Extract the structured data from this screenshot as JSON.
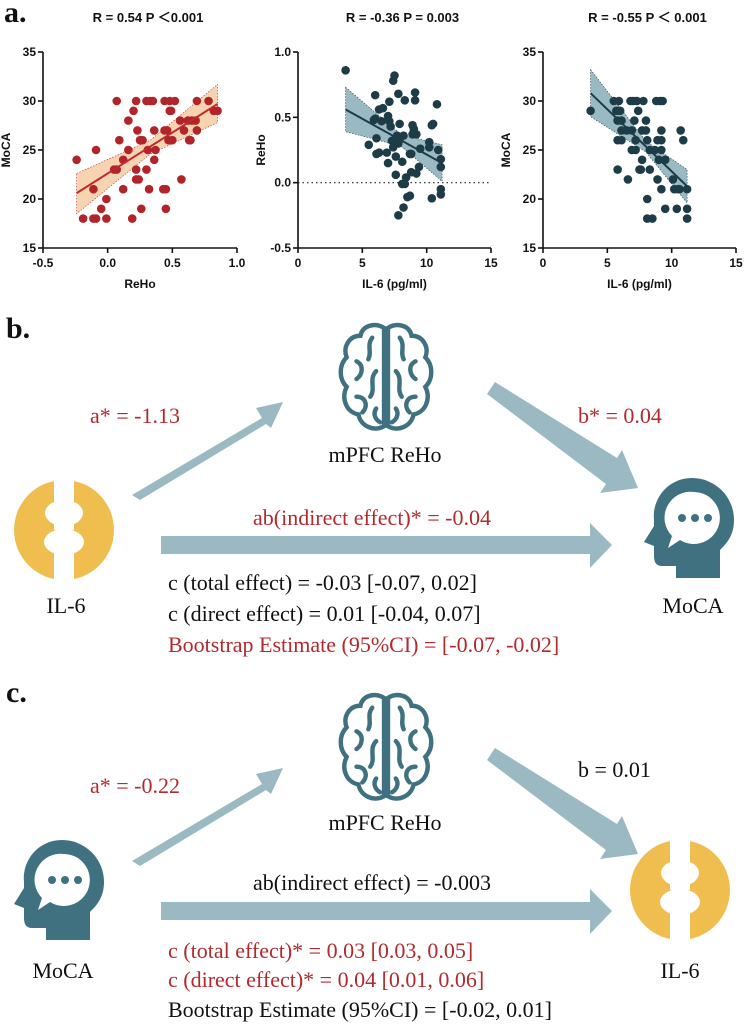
{
  "colors": {
    "red_points": "#b0242a",
    "red_band": "#f6cfa8",
    "dark_points": "#1d3c47",
    "teal_band": "#8fb3bd",
    "arrow": "#9ab9c2",
    "icon_teal": "#3f7181",
    "icon_yellow": "#f0bd4f",
    "red_text": "#b22a2e"
  },
  "panel_a": {
    "letter": "a."
  },
  "chart_data": [
    {
      "type": "scatter",
      "title": "R = 0.54 P ＜0.001",
      "xlabel": "ReHo",
      "ylabel": "MoCA",
      "xlim": [
        -0.5,
        1.0
      ],
      "ylim": [
        15,
        35
      ],
      "xticks": [
        "-0.5",
        "0.0",
        "0.5",
        "1.0"
      ],
      "xtick_values": [
        -0.5,
        0,
        0.5,
        1.0
      ],
      "yticks": [
        "15",
        "20",
        "25",
        "30",
        "35"
      ],
      "ytick_values": [
        15,
        20,
        25,
        30,
        35
      ],
      "point_color": "#b0242a",
      "band_color": "#f6cfa8",
      "line_color": "#c0282d",
      "zero_line": false,
      "fit": {
        "x": [
          -0.24,
          0.85
        ],
        "y": [
          20.6,
          29.7
        ]
      },
      "ci_band": [
        [
          -0.24,
          18.5,
          22.6
        ],
        [
          0.33,
          24.6,
          26.0
        ],
        [
          0.85,
          27.8,
          31.7
        ]
      ],
      "points": [
        [
          -0.24,
          24
        ],
        [
          -0.19,
          18
        ],
        [
          -0.11,
          21
        ],
        [
          -0.11,
          18
        ],
        [
          -0.09,
          18
        ],
        [
          -0.09,
          25
        ],
        [
          -0.05,
          19
        ],
        [
          -0.01,
          20
        ],
        [
          -0.01,
          18
        ],
        [
          0.05,
          23
        ],
        [
          0.07,
          30
        ],
        [
          0.07,
          23
        ],
        [
          0.09,
          26
        ],
        [
          0.12,
          24
        ],
        [
          0.12,
          21
        ],
        [
          0.16,
          25
        ],
        [
          0.16,
          28
        ],
        [
          0.19,
          18
        ],
        [
          0.2,
          29
        ],
        [
          0.22,
          30
        ],
        [
          0.22,
          23
        ],
        [
          0.22,
          22
        ],
        [
          0.23,
          27
        ],
        [
          0.24,
          22
        ],
        [
          0.25,
          26
        ],
        [
          0.26,
          19
        ],
        [
          0.27,
          26
        ],
        [
          0.3,
          30
        ],
        [
          0.3,
          23
        ],
        [
          0.31,
          25
        ],
        [
          0.32,
          21
        ],
        [
          0.33,
          30
        ],
        [
          0.35,
          30
        ],
        [
          0.36,
          27
        ],
        [
          0.36,
          24
        ],
        [
          0.37,
          25
        ],
        [
          0.43,
          21
        ],
        [
          0.44,
          27
        ],
        [
          0.44,
          30
        ],
        [
          0.45,
          19
        ],
        [
          0.45,
          21
        ],
        [
          0.46,
          27
        ],
        [
          0.47,
          26
        ],
        [
          0.48,
          29
        ],
        [
          0.48,
          30
        ],
        [
          0.49,
          29
        ],
        [
          0.5,
          26
        ],
        [
          0.52,
          30
        ],
        [
          0.56,
          28
        ],
        [
          0.57,
          22
        ],
        [
          0.59,
          27
        ],
        [
          0.62,
          28
        ],
        [
          0.63,
          26
        ],
        [
          0.64,
          26
        ],
        [
          0.65,
          28
        ],
        [
          0.68,
          28
        ],
        [
          0.69,
          30
        ],
        [
          0.69,
          27
        ],
        [
          0.78,
          30
        ],
        [
          0.82,
          29
        ],
        [
          0.85,
          29
        ]
      ]
    },
    {
      "type": "scatter",
      "title": "R = -0.36 P = 0.003",
      "xlabel": "IL-6 (pg/ml)",
      "ylabel": "ReHo",
      "xlim": [
        0,
        15
      ],
      "ylim": [
        -0.5,
        1.0
      ],
      "xticks": [
        "0",
        "5",
        "10",
        "15"
      ],
      "xtick_values": [
        0,
        5,
        10,
        15
      ],
      "yticks": [
        "-0.5",
        "0.0",
        "0.5",
        "1.0"
      ],
      "ytick_values": [
        -0.5,
        0,
        0.5,
        1.0
      ],
      "point_color": "#1d3c47",
      "band_color": "#8fb3bd",
      "line_color": "#1d3c47",
      "zero_line": true,
      "fit": {
        "x": [
          3.7,
          11.2
        ],
        "y": [
          0.56,
          0.15
        ]
      },
      "ci_band": [
        [
          3.7,
          0.39,
          0.73
        ],
        [
          8.0,
          0.28,
          0.37
        ],
        [
          11.2,
          0.01,
          0.29
        ]
      ],
      "points": [
        [
          3.7,
          0.86
        ],
        [
          6,
          0.67
        ],
        [
          6,
          0.49
        ],
        [
          5.9,
          0.48
        ],
        [
          6.1,
          0.34
        ],
        [
          6.1,
          0.22
        ],
        [
          5.5,
          0.29
        ],
        [
          6.3,
          0.56
        ],
        [
          6.5,
          0.47
        ],
        [
          6.6,
          0.57
        ],
        [
          6.3,
          0.23
        ],
        [
          6.9,
          0.23
        ],
        [
          7,
          0.51
        ],
        [
          7,
          0.15
        ],
        [
          7.1,
          0.47
        ],
        [
          7.2,
          0.43
        ],
        [
          7.1,
          0.62
        ],
        [
          7.3,
          0.32
        ],
        [
          7.4,
          0.27
        ],
        [
          7.4,
          0.78
        ],
        [
          7.5,
          0.82
        ],
        [
          7.6,
          0.2
        ],
        [
          7.6,
          0.06
        ],
        [
          7.7,
          0.36
        ],
        [
          7.8,
          0.68
        ],
        [
          7.8,
          0.3
        ],
        [
          7.8,
          -0.25
        ],
        [
          7.9,
          0.45
        ],
        [
          8,
          0.35
        ],
        [
          8.1,
          0.16
        ],
        [
          8.1,
          -0.01
        ],
        [
          8.2,
          0.36
        ],
        [
          8.3,
          0.63
        ],
        [
          8.3,
          -0.01
        ],
        [
          8.2,
          -0.19
        ],
        [
          8.4,
          0.04
        ],
        [
          8.5,
          -0.11
        ],
        [
          8.7,
          0.22
        ],
        [
          8.7,
          -0.1
        ],
        [
          8.8,
          0.08
        ],
        [
          8.8,
          0.22
        ],
        [
          8.9,
          0.44
        ],
        [
          8.9,
          0.37
        ],
        [
          9.0,
          0.41
        ],
        [
          9.1,
          0.69
        ],
        [
          9.1,
          0.63
        ],
        [
          9.2,
          0.37
        ],
        [
          9.2,
          0.07
        ],
        [
          9.4,
          0.12
        ],
        [
          9.5,
          0.26
        ],
        [
          10.2,
          0.31
        ],
        [
          10.2,
          0.27
        ],
        [
          10.4,
          0.44
        ],
        [
          10.5,
          0.45
        ],
        [
          10.4,
          -0.12
        ],
        [
          10.8,
          0.6
        ],
        [
          10.9,
          0.25
        ],
        [
          11.1,
          0.18
        ],
        [
          11.1,
          0.12
        ],
        [
          11.1,
          -0.05
        ],
        [
          11.1,
          -0.09
        ]
      ]
    },
    {
      "type": "scatter",
      "title": "R = -0.55 P ＜ 0.001",
      "xlabel": "IL-6 (pg/ml)",
      "ylabel": "MoCA",
      "xlim": [
        0,
        15
      ],
      "ylim": [
        15,
        35
      ],
      "xticks": [
        "0",
        "5",
        "10",
        "15"
      ],
      "xtick_values": [
        0,
        5,
        10,
        15
      ],
      "yticks": [
        "15",
        "20",
        "25",
        "30",
        "35"
      ],
      "ytick_values": [
        15,
        20,
        25,
        30,
        35
      ],
      "point_color": "#1d3c47",
      "band_color": "#8fb3bd",
      "line_color": "#1d3c47",
      "zero_line": false,
      "fit": {
        "x": [
          3.7,
          11.2
        ],
        "y": [
          30.8,
          21.3
        ]
      },
      "ci_band": [
        [
          3.7,
          28.4,
          33.2
        ],
        [
          8.0,
          24.8,
          25.9
        ],
        [
          11.2,
          19.6,
          23.0
        ]
      ],
      "points": [
        [
          3.7,
          29
        ],
        [
          5.5,
          30
        ],
        [
          5.9,
          30
        ],
        [
          5.7,
          29
        ],
        [
          6.0,
          29
        ],
        [
          5.8,
          28
        ],
        [
          6.1,
          28
        ],
        [
          6.1,
          27
        ],
        [
          5.8,
          26
        ],
        [
          6.1,
          26
        ],
        [
          5.8,
          23
        ],
        [
          6.5,
          27
        ],
        [
          6.6,
          22
        ],
        [
          6.8,
          30
        ],
        [
          6.9,
          27
        ],
        [
          6.9,
          25
        ],
        [
          7,
          30
        ],
        [
          7.1,
          28
        ],
        [
          7.2,
          26
        ],
        [
          7.2,
          25
        ],
        [
          7.3,
          30
        ],
        [
          7.4,
          29
        ],
        [
          7.5,
          23
        ],
        [
          7.6,
          23
        ],
        [
          7.7,
          27
        ],
        [
          7.7,
          24
        ],
        [
          7.8,
          30
        ],
        [
          8,
          28
        ],
        [
          8,
          27
        ],
        [
          8.1,
          26
        ],
        [
          8.1,
          20
        ],
        [
          8.1,
          18
        ],
        [
          8.3,
          25
        ],
        [
          8.3,
          23
        ],
        [
          8.5,
          18
        ],
        [
          8.7,
          25
        ],
        [
          8.8,
          30
        ],
        [
          8.9,
          26
        ],
        [
          8.9,
          22
        ],
        [
          9,
          24
        ],
        [
          9.1,
          30
        ],
        [
          9.2,
          27
        ],
        [
          9.2,
          26
        ],
        [
          9.2,
          25
        ],
        [
          9.2,
          21
        ],
        [
          9.3,
          30
        ],
        [
          9.5,
          24
        ],
        [
          9.5,
          19
        ],
        [
          10.1,
          22
        ],
        [
          10.2,
          21
        ],
        [
          10.4,
          19
        ],
        [
          10.5,
          21
        ],
        [
          10.6,
          21
        ],
        [
          10.7,
          27
        ],
        [
          10.9,
          26
        ],
        [
          11.2,
          21
        ],
        [
          11.2,
          19
        ],
        [
          11.2,
          18
        ]
      ]
    }
  ],
  "panel_b": {
    "letter": "b.",
    "mediator": "mPFC ReHo",
    "x_node": "IL-6",
    "y_node": "MoCA",
    "a_path": "a* = -1.13",
    "b_path": "b* = 0.04",
    "indirect": "ab(indirect effect)* = -0.04",
    "total": "c (total effect) = -0.03 [-0.07, 0.02]",
    "direct": "c (direct effect) = 0.01 [-0.04, 0.07]",
    "bootstrap": "Bootstrap Estimate (95%CI) = [-0.07, -0.02]"
  },
  "panel_c": {
    "letter": "c.",
    "mediator": "mPFC ReHo",
    "x_node": "MoCA",
    "y_node": "IL-6",
    "a_path": "a* =  -0.22",
    "b_path": "b = 0.01",
    "indirect": "ab(indirect effect) = -0.003",
    "total": "c (total effect)* = 0.03 [0.03, 0.05]",
    "direct": "c (direct effect)*  = 0.04 [0.01, 0.06]",
    "bootstrap": "Bootstrap Estimate (95%CI) = [-0.02, 0.01]"
  }
}
